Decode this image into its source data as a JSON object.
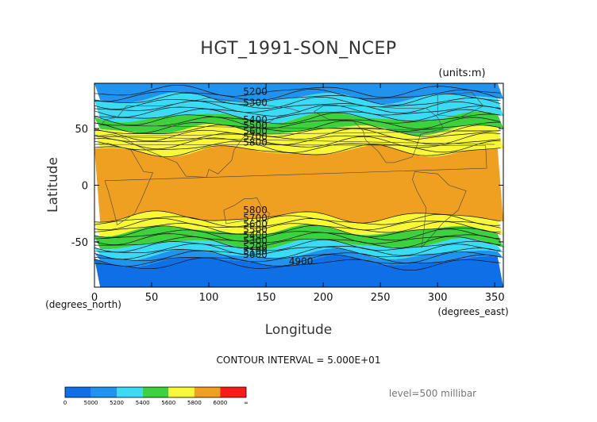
{
  "chart_data": {
    "type": "heatmap",
    "title": "HGT_1991-SON_NCEP",
    "units_label": "(units:m)",
    "xlabel": "Longitude",
    "ylabel": "Latitude",
    "x_unit_label": "(degrees_east)",
    "y_unit_label": "(degrees_north)",
    "xlim": [
      0,
      357.5
    ],
    "ylim": [
      -90,
      90
    ],
    "x_ticks": [
      0,
      50,
      100,
      150,
      200,
      250,
      300,
      350
    ],
    "y_ticks": [
      -50,
      0,
      50
    ],
    "contour_interval_text": "CONTOUR INTERVAL = 5.000E+01",
    "level_text": "level=500 millibar",
    "contour_labels": [
      {
        "text": "5200",
        "lon": 130,
        "lat": 80
      },
      {
        "text": "5300",
        "lon": 130,
        "lat": 70
      },
      {
        "text": "5400",
        "lon": 130,
        "lat": 55
      },
      {
        "text": "5500",
        "lon": 130,
        "lat": 50
      },
      {
        "text": "5600",
        "lon": 130,
        "lat": 45
      },
      {
        "text": "5700",
        "lon": 130,
        "lat": 40
      },
      {
        "text": "5800",
        "lon": 130,
        "lat": 35
      },
      {
        "text": "5800",
        "lon": 130,
        "lat": -25
      },
      {
        "text": "5700",
        "lon": 130,
        "lat": -32
      },
      {
        "text": "5600",
        "lon": 130,
        "lat": -37
      },
      {
        "text": "5500",
        "lon": 130,
        "lat": -42
      },
      {
        "text": "5400",
        "lon": 130,
        "lat": -47
      },
      {
        "text": "5300",
        "lon": 130,
        "lat": -52
      },
      {
        "text": "5200",
        "lon": 130,
        "lat": -57
      },
      {
        "text": "5100",
        "lon": 130,
        "lat": -61
      },
      {
        "text": "5000",
        "lon": 130,
        "lat": -64
      },
      {
        "text": "4900",
        "lon": 170,
        "lat": -70
      }
    ],
    "colorbar": {
      "tick_labels": [
        "0",
        "5000",
        "5200",
        "5400",
        "5600",
        "5800",
        "6000",
        "∞"
      ],
      "segments": [
        {
          "min": 0,
          "max": 5000,
          "color": "#0f6fe6"
        },
        {
          "min": 5000,
          "max": 5200,
          "color": "#1f93ee"
        },
        {
          "min": 5200,
          "max": 5400,
          "color": "#39dcf4"
        },
        {
          "min": 5400,
          "max": 5600,
          "color": "#3ed13e"
        },
        {
          "min": 5600,
          "max": 5800,
          "color": "#f8f834"
        },
        {
          "min": 5800,
          "max": 6000,
          "color": "#f0a020"
        },
        {
          "min": 6000,
          "max": 99999,
          "color": "#ff1a1a"
        }
      ]
    },
    "zonal_bands": [
      {
        "lat_top": 90,
        "lat_bottom": 77,
        "color": "#1f93ee"
      },
      {
        "lat_top": 77,
        "lat_bottom": 60,
        "color": "#39dcf4"
      },
      {
        "lat_top": 60,
        "lat_bottom": 49,
        "color": "#3ed13e"
      },
      {
        "lat_top": 49,
        "lat_bottom": 30,
        "color": "#f8f834"
      },
      {
        "lat_top": 30,
        "lat_bottom": -28,
        "color": "#f0a020"
      },
      {
        "lat_top": -28,
        "lat_bottom": -40,
        "color": "#f8f834"
      },
      {
        "lat_top": -40,
        "lat_bottom": -52,
        "color": "#3ed13e"
      },
      {
        "lat_top": -52,
        "lat_bottom": -61,
        "color": "#39dcf4"
      },
      {
        "lat_top": -61,
        "lat_bottom": -67,
        "color": "#1f93ee"
      },
      {
        "lat_top": -67,
        "lat_bottom": -90,
        "color": "#0f6fe6"
      }
    ]
  }
}
